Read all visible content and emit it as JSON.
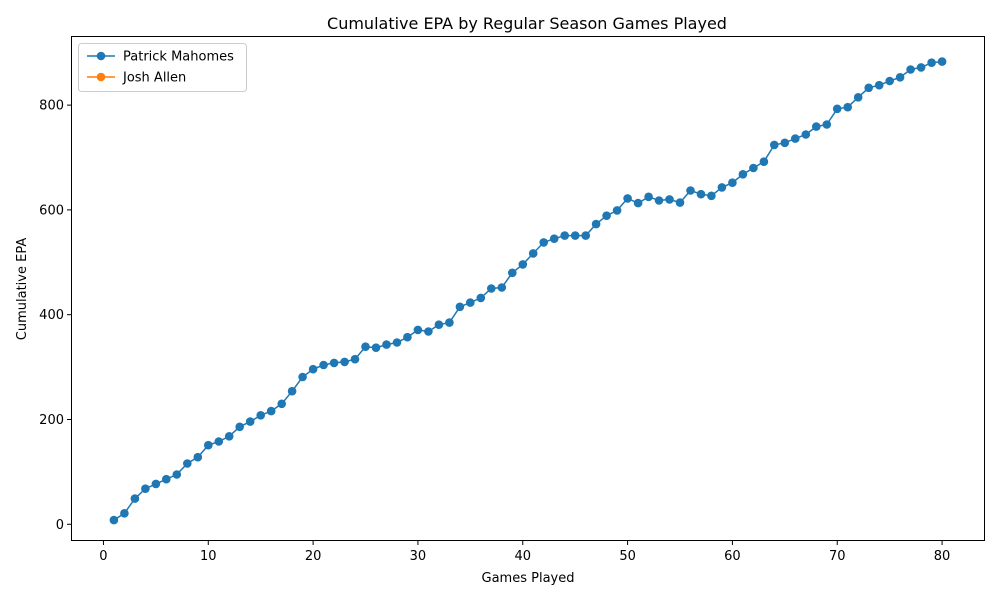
{
  "chart_data": {
    "type": "line",
    "title": "Cumulative EPA by Regular Season Games Played",
    "xlabel": "Games Played",
    "ylabel": "Cumulative EPA",
    "xlim": [
      -3,
      84
    ],
    "ylim": [
      -30,
      930
    ],
    "xticks": [
      0,
      10,
      20,
      30,
      40,
      50,
      60,
      70,
      80
    ],
    "yticks": [
      0,
      200,
      400,
      600,
      800
    ],
    "legend_position": "top-left",
    "series": [
      {
        "name": "Patrick Mahomes",
        "color": "#1f77b4",
        "x": [
          1,
          2,
          3,
          4,
          5,
          6,
          7,
          8,
          9,
          10,
          11,
          12,
          13,
          14,
          15,
          16,
          17,
          18,
          19,
          20,
          21,
          22,
          23,
          24,
          25,
          26,
          27,
          28,
          29,
          30,
          31,
          32,
          33,
          34,
          35,
          36,
          37,
          38,
          39,
          40,
          41,
          42,
          43,
          44,
          45,
          46,
          47,
          48,
          49,
          50,
          51,
          52,
          53,
          54,
          55,
          56,
          57,
          58,
          59,
          60,
          61,
          62,
          63,
          64,
          65,
          66,
          67,
          68,
          69,
          70,
          71,
          72,
          73,
          74,
          75,
          76,
          77,
          78,
          79,
          80
        ],
        "y": [
          8,
          21,
          49,
          68,
          77,
          86,
          95,
          116,
          128,
          151,
          158,
          168,
          186,
          196,
          208,
          216,
          230,
          254,
          281,
          296,
          304,
          308,
          310,
          315,
          339,
          337,
          343,
          347,
          357,
          371,
          368,
          381,
          385,
          415,
          423,
          432,
          450,
          452,
          480,
          496,
          517,
          538,
          545,
          551,
          551,
          551,
          573,
          589,
          599,
          622,
          613,
          625,
          618,
          620,
          614,
          637,
          630,
          627,
          643,
          652,
          668,
          680,
          692,
          724,
          728,
          736,
          744,
          759,
          763,
          793,
          796,
          815,
          833,
          838,
          846,
          853,
          868,
          872,
          881,
          883
        ]
      },
      {
        "name": "Josh Allen",
        "color": "#ff7f0e",
        "x": [],
        "y": []
      }
    ]
  }
}
